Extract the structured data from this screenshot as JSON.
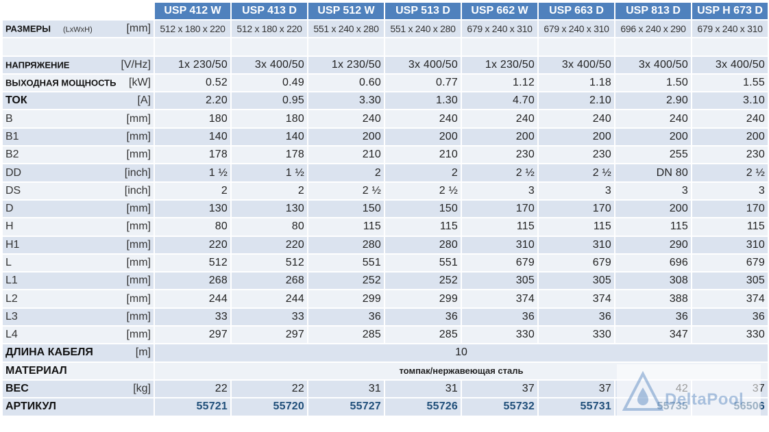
{
  "header": {
    "models": [
      "USP 412 W",
      "USP 413 D",
      "USP 512 W",
      "USP 513 D",
      "USP 662 W",
      "USP 663 D",
      "USP 813 D",
      "USP H 673 D"
    ]
  },
  "rows": {
    "dims": {
      "label": "РАЗМЕРЫ",
      "note": "(LxWxH)",
      "unit": "[mm]",
      "values": [
        "512 x 180 x 220",
        "512 x 180 x 220",
        "551 x 240 x 280",
        "551 x 240 x 280",
        "679 x 240 x 310",
        "679 x 240 x 310",
        "696 x 240 x 290",
        "679 x 240 x 310"
      ]
    },
    "voltage": {
      "label": "НАПРЯЖЕНИЕ",
      "unit": "[V/Hz]",
      "values": [
        "1x 230/50",
        "3x 400/50",
        "1x 230/50",
        "3x 400/50",
        "1x 230/50",
        "3x 400/50",
        "3x 400/50",
        "3x 400/50"
      ]
    },
    "power": {
      "label": "ВЫХОДНАЯ МОЩНОСТЬ",
      "unit": "[kW]",
      "values": [
        "0.52",
        "0.49",
        "0.60",
        "0.77",
        "1.12",
        "1.18",
        "1.50",
        "1.55"
      ]
    },
    "current": {
      "label": "ТОК",
      "unit": "[A]",
      "values": [
        "2.20",
        "0.95",
        "3.30",
        "1.30",
        "4.70",
        "2.10",
        "2.90",
        "3.10"
      ]
    },
    "b": {
      "label": "B",
      "unit": "[mm]",
      "values": [
        "180",
        "180",
        "240",
        "240",
        "240",
        "240",
        "240",
        "240"
      ]
    },
    "b1": {
      "label": "B1",
      "unit": "[mm]",
      "values": [
        "140",
        "140",
        "200",
        "200",
        "200",
        "200",
        "200",
        "200"
      ]
    },
    "b2": {
      "label": "B2",
      "unit": "[mm]",
      "values": [
        "178",
        "178",
        "210",
        "210",
        "230",
        "230",
        "255",
        "230"
      ]
    },
    "dd": {
      "label": "DD",
      "unit": "[inch]",
      "values": [
        "1 ½",
        "1 ½",
        "2",
        "2",
        "2 ½",
        "2 ½",
        "DN 80",
        "2 ½"
      ]
    },
    "ds": {
      "label": "DS",
      "unit": "[inch]",
      "values": [
        "2",
        "2",
        "2 ½",
        "2 ½",
        "3",
        "3",
        "3",
        "3"
      ]
    },
    "d": {
      "label": "D",
      "unit": "[mm]",
      "values": [
        "130",
        "130",
        "150",
        "150",
        "170",
        "170",
        "200",
        "170"
      ]
    },
    "h": {
      "label": "H",
      "unit": "[mm]",
      "values": [
        "80",
        "80",
        "115",
        "115",
        "115",
        "115",
        "115",
        "115"
      ]
    },
    "h1": {
      "label": "H1",
      "unit": "[mm]",
      "values": [
        "220",
        "220",
        "280",
        "280",
        "310",
        "310",
        "290",
        "310"
      ]
    },
    "l": {
      "label": "L",
      "unit": "[mm]",
      "values": [
        "512",
        "512",
        "551",
        "551",
        "679",
        "679",
        "696",
        "679"
      ]
    },
    "l1": {
      "label": "L1",
      "unit": "[mm]",
      "values": [
        "268",
        "268",
        "252",
        "252",
        "305",
        "305",
        "308",
        "305"
      ]
    },
    "l2": {
      "label": "L2",
      "unit": "[mm]",
      "values": [
        "244",
        "244",
        "299",
        "299",
        "374",
        "374",
        "388",
        "374"
      ]
    },
    "l3": {
      "label": "L3",
      "unit": "[mm]",
      "values": [
        "33",
        "33",
        "36",
        "36",
        "36",
        "36",
        "36",
        "36"
      ]
    },
    "l4": {
      "label": "L4",
      "unit": "[mm]",
      "values": [
        "297",
        "297",
        "285",
        "285",
        "330",
        "330",
        "347",
        "330"
      ]
    },
    "cable": {
      "label": "ДЛИНА КАБЕЛЯ",
      "unit": "[m]",
      "value": "10"
    },
    "material": {
      "label": "МАТЕРИАЛ",
      "value": "томпак/нержавеющая сталь"
    },
    "weight": {
      "label": "ВЕС",
      "unit": "[kg]",
      "values": [
        "22",
        "22",
        "31",
        "31",
        "37",
        "37",
        "42",
        "37"
      ]
    },
    "article": {
      "label": "АРТИКУЛ",
      "values": [
        "55721",
        "55720",
        "55727",
        "55726",
        "55732",
        "55731",
        "55735",
        "56506"
      ]
    }
  },
  "watermark": {
    "text": "DeltaPool"
  },
  "colors": {
    "header_bg": "#4f81bd",
    "row_dark": "#dbe3ef",
    "row_light": "#eef2f7",
    "article_text": "#1f4e79"
  }
}
